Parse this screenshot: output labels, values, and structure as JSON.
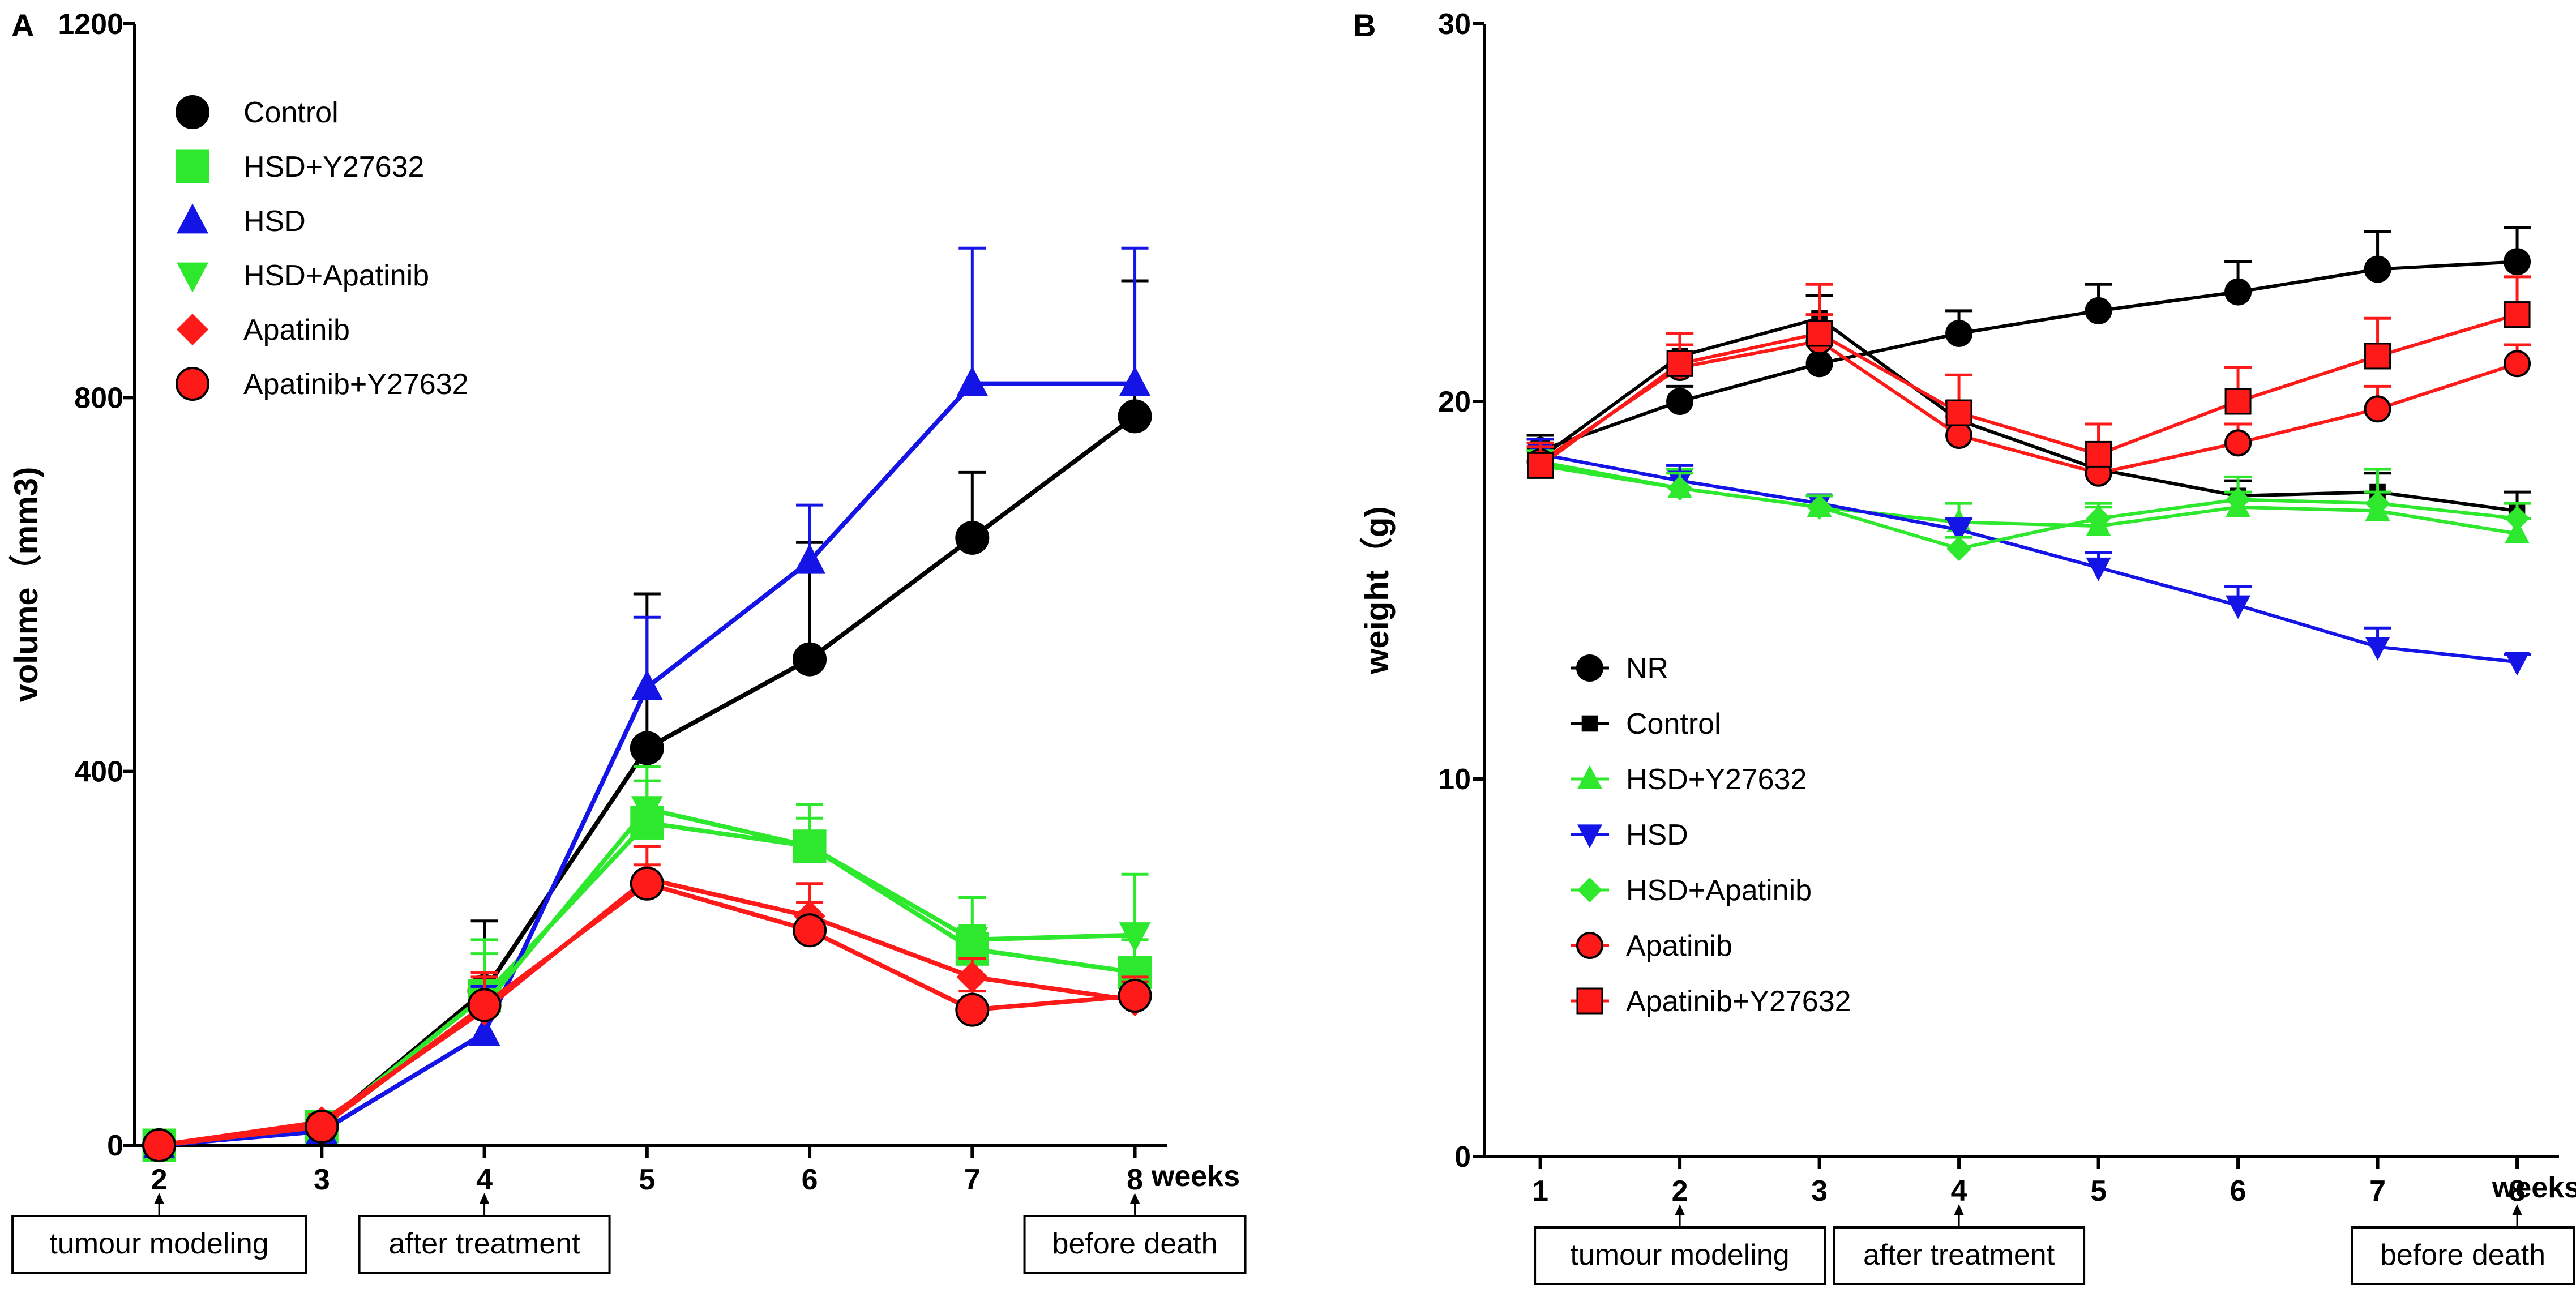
{
  "chart_data": [
    {
      "panel_label": "A",
      "type": "line",
      "title": "",
      "xlabel": "weeks",
      "ylabel": "volume（mm3)",
      "x": [
        2,
        3,
        4,
        5,
        6,
        7,
        8
      ],
      "xlim": [
        1.85,
        8.2
      ],
      "ylim": [
        0,
        1200
      ],
      "yticks": [
        0,
        400,
        800,
        1200
      ],
      "grid": false,
      "legend_position": "top-left",
      "series": [
        {
          "name": "Control",
          "color": "#000000",
          "marker": "circle",
          "values": [
            0,
            20,
            165,
            425,
            520,
            650,
            780
          ],
          "errors": [
            0,
            10,
            75,
            165,
            125,
            70,
            145
          ]
        },
        {
          "name": "HSD+Y27632",
          "color": "#2ee82e",
          "marker": "square",
          "values": [
            0,
            20,
            160,
            345,
            320,
            210,
            185
          ],
          "errors": [
            0,
            8,
            60,
            45,
            30,
            25,
            35
          ]
        },
        {
          "name": "HSD",
          "color": "#1414e6",
          "marker": "triangle",
          "values": [
            0,
            15,
            120,
            490,
            625,
            815,
            815
          ],
          "errors": [
            0,
            8,
            50,
            75,
            60,
            145,
            145
          ]
        },
        {
          "name": "HSD+Apatinib",
          "color": "#2ee82e",
          "marker": "triangle-down",
          "values": [
            0,
            20,
            150,
            360,
            320,
            220,
            225
          ],
          "errors": [
            0,
            8,
            55,
            45,
            45,
            45,
            65
          ]
        },
        {
          "name": "Apatinib",
          "color": "#ff1a1a",
          "marker": "diamond",
          "values": [
            0,
            25,
            145,
            285,
            245,
            180,
            155
          ],
          "errors": [
            0,
            8,
            35,
            35,
            35,
            20,
            20
          ]
        },
        {
          "name": "Apatinib+Y27632",
          "color": "#ff1a1a",
          "marker": "circle",
          "values": [
            0,
            20,
            150,
            280,
            230,
            145,
            160
          ],
          "errors": [
            0,
            8,
            35,
            20,
            30,
            20,
            20
          ]
        }
      ],
      "annotations": [
        {
          "text": "tumour modeling",
          "x": 2
        },
        {
          "text": "after treatment",
          "x": 4
        },
        {
          "text": "before death",
          "x": 8
        }
      ]
    },
    {
      "panel_label": "B",
      "type": "line",
      "title": "",
      "xlabel": "weeks",
      "ylabel": "weight（g)",
      "x": [
        1,
        2,
        3,
        4,
        5,
        6,
        7,
        8
      ],
      "xlim": [
        0.6,
        8.3
      ],
      "ylim": [
        0,
        30
      ],
      "yticks": [
        0,
        10,
        20,
        30
      ],
      "grid": false,
      "legend_position": "bottom-left",
      "series": [
        {
          "name": "NR",
          "color": "#000000",
          "marker": "circle",
          "values": [
            18.7,
            20.0,
            21.0,
            21.8,
            22.4,
            22.9,
            23.5,
            23.7
          ],
          "errors": [
            0.4,
            0.4,
            0.6,
            0.6,
            0.7,
            0.8,
            1.0,
            0.9
          ]
        },
        {
          "name": "Control",
          "color": "#000000",
          "marker": "square-small",
          "values": [
            18.5,
            21.2,
            22.2,
            19.5,
            18.2,
            17.5,
            17.6,
            17.1
          ],
          "errors": [
            0.5,
            0.6,
            0.6,
            0.5,
            0.5,
            0.4,
            0.5,
            0.5
          ]
        },
        {
          "name": "HSD+Y27632",
          "color": "#2ee82e",
          "marker": "triangle",
          "values": [
            18.4,
            17.7,
            17.2,
            16.8,
            16.7,
            17.2,
            17.1,
            16.5
          ],
          "errors": [
            0.5,
            0.5,
            0.3,
            0.5,
            0.5,
            0.4,
            0.5,
            0.4
          ]
        },
        {
          "name": "HSD",
          "color": "#1414e6",
          "marker": "triangle-down",
          "values": [
            18.6,
            17.9,
            17.3,
            16.6,
            15.6,
            14.6,
            13.5,
            13.1
          ],
          "errors": [
            0.4,
            0.4,
            0.2,
            0.3,
            0.4,
            0.5,
            0.5,
            0.2
          ]
        },
        {
          "name": "HSD+Apatinib",
          "color": "#2ee82e",
          "marker": "diamond",
          "values": [
            18.3,
            17.7,
            17.2,
            16.1,
            16.9,
            17.4,
            17.3,
            16.9
          ],
          "errors": [
            0.4,
            0.4,
            0.3,
            0.3,
            0.4,
            0.6,
            0.9,
            0.4
          ]
        },
        {
          "name": "Apatinib",
          "color": "#ff1a1a",
          "marker": "circle",
          "values": [
            18.4,
            20.9,
            21.6,
            19.1,
            18.1,
            18.9,
            19.8,
            21.0
          ],
          "errors": [
            0.5,
            0.6,
            0.7,
            0.5,
            0.5,
            0.5,
            0.6,
            0.5
          ]
        },
        {
          "name": "Apatinib+Y27632",
          "color": "#ff1a1a",
          "marker": "square",
          "values": [
            18.3,
            21.0,
            21.8,
            19.7,
            18.6,
            20.0,
            21.2,
            22.3
          ],
          "errors": [
            0.5,
            0.8,
            1.3,
            1.0,
            0.8,
            0.9,
            1.0,
            1.0
          ]
        }
      ],
      "annotations": [
        {
          "text": "tumour modeling",
          "x": 2
        },
        {
          "text": "after treatment",
          "x": 4
        },
        {
          "text": "before death",
          "x": 8
        }
      ]
    }
  ]
}
